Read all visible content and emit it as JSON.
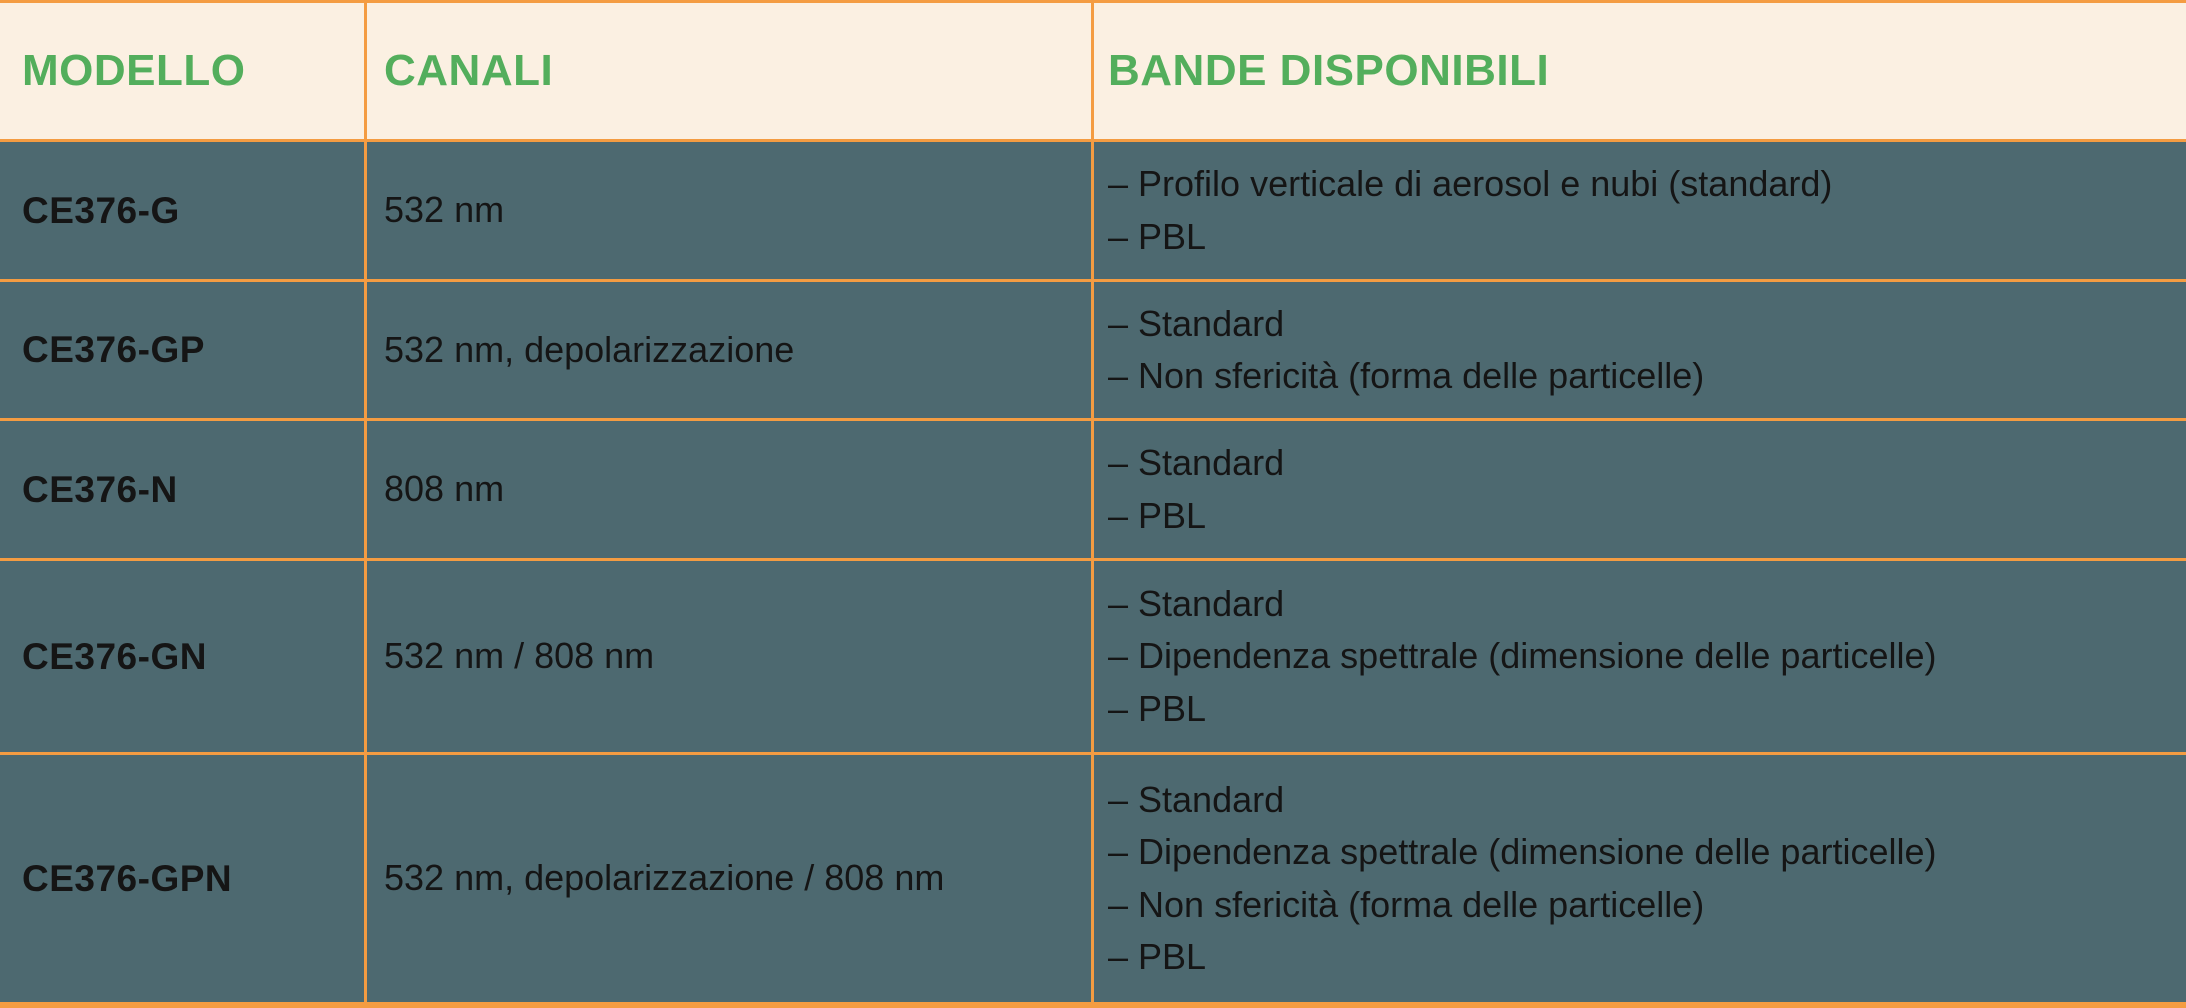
{
  "colors": {
    "cream": "#FBF0E2",
    "teal": "#4D6970",
    "orange": "#F49C42",
    "green": "#53AE5C",
    "ink": "#151515"
  },
  "table": {
    "columns": [
      {
        "label": "MODELLO"
      },
      {
        "label": "CANALI"
      },
      {
        "label": "BANDE DISPONIBILI"
      }
    ],
    "rows": [
      {
        "modello": "CE376-G",
        "canali": "532 nm",
        "bande": [
          "– Profilo verticale di aerosol e nubi (standard)",
          "– PBL"
        ]
      },
      {
        "modello": "CE376-GP",
        "canali": "532 nm, depolarizzazione",
        "bande": [
          "– Standard",
          "– Non sfericità (forma delle particelle)"
        ]
      },
      {
        "modello": "CE376-N",
        "canali": "808 nm",
        "bande": [
          "– Standard",
          "– PBL"
        ]
      },
      {
        "modello": "CE376-GN",
        "canali": "532 nm / 808 nm",
        "bande": [
          "– Standard",
          "– Dipendenza spettrale (dimensione delle particelle)",
          "– PBL"
        ]
      },
      {
        "modello": "CE376-GPN",
        "canali": "532 nm, depolarizzazione / 808 nm",
        "bande": [
          "– Standard",
          "– Dipendenza spettrale (dimensione delle particelle)",
          "– Non sfericità (forma delle particelle)",
          "– PBL"
        ]
      }
    ]
  }
}
